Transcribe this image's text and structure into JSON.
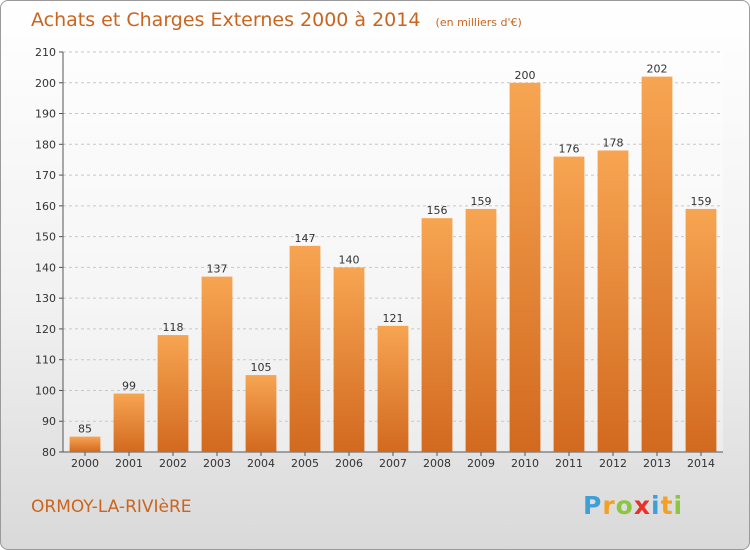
{
  "chart_data": {
    "type": "bar",
    "title": "Achats et Charges Externes 2000 à 2014",
    "subtitle": "(en milliers d'€)",
    "categories": [
      "2000",
      "2001",
      "2002",
      "2003",
      "2004",
      "2005",
      "2006",
      "2007",
      "2008",
      "2009",
      "2010",
      "2011",
      "2012",
      "2013",
      "2014"
    ],
    "values": [
      85,
      99,
      118,
      137,
      105,
      147,
      140,
      121,
      156,
      159,
      200,
      176,
      178,
      202,
      159
    ],
    "ylim": [
      80,
      210
    ],
    "yticks": [
      80,
      90,
      100,
      110,
      120,
      130,
      140,
      150,
      160,
      170,
      180,
      190,
      200,
      210
    ],
    "grid": true,
    "xlabel": "",
    "ylabel": "",
    "bar_color_light": "#f7a552",
    "bar_color_dark": "#d2691e"
  },
  "footer": {
    "commune": "ORMOY-LA-RIVIèRE",
    "logo_letters": [
      "P",
      "r",
      "o",
      "x",
      "i",
      "t",
      "i"
    ],
    "logo_colors": [
      "#3fa0d8",
      "#f2a124",
      "#8cc63f",
      "#e5332a",
      "#3fa0d8",
      "#f2a124",
      "#8cc63f"
    ]
  }
}
